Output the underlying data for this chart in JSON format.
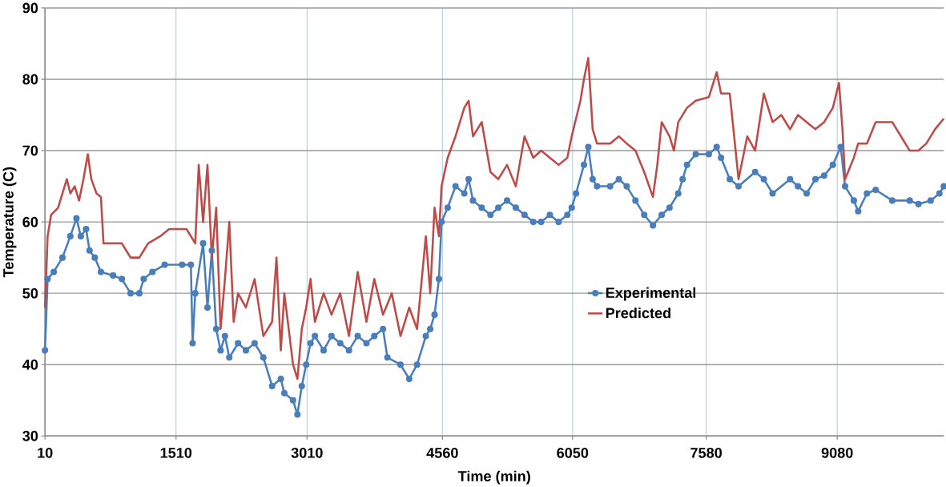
{
  "chart_data": {
    "type": "line",
    "xlabel": "Time (min)",
    "ylabel": "Temperature (C)",
    "xlim": [
      10,
      10300
    ],
    "xticks": [
      10,
      1510,
      3010,
      4560,
      6050,
      7580,
      9080
    ],
    "ylim": [
      30,
      90
    ],
    "yticks": [
      30,
      40,
      50,
      60,
      70,
      80,
      90
    ],
    "grid": true,
    "legend": "right",
    "series": [
      {
        "name": "Experimental",
        "color": "#4a7ebb",
        "marker": "circle",
        "x": [
          10,
          40,
          110,
          210,
          300,
          370,
          420,
          480,
          520,
          580,
          650,
          790,
          890,
          990,
          1090,
          1140,
          1240,
          1380,
          1580,
          1680,
          1700,
          1730,
          1820,
          1870,
          1920,
          1970,
          2020,
          2070,
          2120,
          2220,
          2310,
          2410,
          2510,
          2610,
          2710,
          2750,
          2850,
          2900,
          2950,
          3000,
          3050,
          3100,
          3200,
          3290,
          3390,
          3490,
          3590,
          3690,
          3780,
          3880,
          3930,
          4080,
          4180,
          4270,
          4370,
          4420,
          4470,
          4520,
          4550,
          4620,
          4710,
          4810,
          4860,
          4910,
          5010,
          5110,
          5200,
          5300,
          5400,
          5500,
          5600,
          5690,
          5790,
          5890,
          5990,
          6040,
          6090,
          6180,
          6230,
          6280,
          6330,
          6480,
          6580,
          6670,
          6770,
          6870,
          6970,
          7070,
          7160,
          7260,
          7310,
          7360,
          7460,
          7610,
          7700,
          7750,
          7850,
          7950,
          8140,
          8240,
          8340,
          8540,
          8630,
          8730,
          8830,
          8930,
          9030,
          9120,
          9170,
          9270,
          9320,
          9420,
          9520,
          9710,
          9910,
          10010,
          10150,
          10250,
          10300
        ],
        "values": [
          42,
          52,
          53,
          55,
          58,
          60.5,
          58,
          59,
          56,
          55,
          53,
          52.5,
          52,
          50,
          50,
          52,
          53,
          54,
          54,
          54,
          43,
          50,
          57,
          48,
          56,
          45,
          42,
          44,
          41,
          43,
          42,
          43,
          41,
          37,
          38,
          36,
          35,
          33,
          37,
          40,
          43,
          44,
          42,
          44,
          43,
          42,
          44,
          43,
          44,
          45,
          41,
          40,
          38,
          40,
          44,
          45,
          47,
          52,
          60,
          62,
          65,
          64,
          66,
          63,
          62,
          61,
          62,
          63,
          62,
          61,
          60,
          60,
          61,
          60,
          61,
          62,
          64,
          68,
          70.5,
          66,
          65,
          65,
          66,
          65,
          63,
          61,
          59.5,
          61,
          62,
          64,
          66,
          68,
          69.5,
          69.5,
          70.5,
          69,
          66,
          65,
          67,
          66,
          64,
          66,
          65,
          64,
          66,
          66.5,
          68,
          70.5,
          65,
          63,
          61.5,
          64,
          64.5,
          63,
          63,
          62.5,
          63,
          64,
          65
        ]
      },
      {
        "name": "Predicted",
        "color": "#be4b48",
        "marker": "none",
        "x": [
          10,
          40,
          80,
          160,
          210,
          260,
          300,
          350,
          400,
          450,
          500,
          540,
          600,
          650,
          680,
          790,
          890,
          940,
          990,
          1090,
          1140,
          1190,
          1330,
          1430,
          1630,
          1680,
          1730,
          1770,
          1820,
          1870,
          1920,
          1970,
          2020,
          2070,
          2120,
          2170,
          2220,
          2310,
          2410,
          2510,
          2610,
          2660,
          2710,
          2750,
          2850,
          2900,
          2950,
          3000,
          3050,
          3100,
          3200,
          3290,
          3390,
          3490,
          3590,
          3690,
          3780,
          3880,
          3980,
          4080,
          4180,
          4270,
          4370,
          4420,
          4470,
          4520,
          4550,
          4620,
          4710,
          4810,
          4860,
          4910,
          5010,
          5110,
          5200,
          5300,
          5400,
          5500,
          5600,
          5690,
          5790,
          5890,
          5990,
          6040,
          6140,
          6180,
          6230,
          6280,
          6330,
          6480,
          6580,
          6670,
          6770,
          6870,
          6970,
          7020,
          7070,
          7160,
          7210,
          7260,
          7360,
          7460,
          7610,
          7700,
          7750,
          7850,
          7950,
          8050,
          8140,
          8240,
          8340,
          8440,
          8540,
          8630,
          8730,
          8830,
          8930,
          9030,
          9100,
          9140,
          9170,
          9270,
          9320,
          9420,
          9520,
          9710,
          9810,
          9910,
          10010,
          10100,
          10200,
          10300
        ],
        "values": [
          48,
          58,
          61,
          62,
          64,
          66,
          64,
          65,
          63,
          66,
          69.5,
          66,
          64,
          63.5,
          57,
          57,
          57,
          56,
          55,
          55,
          56,
          57,
          58,
          59,
          59,
          58,
          57,
          68,
          60,
          68,
          55,
          62,
          45,
          52,
          60,
          46,
          50,
          48,
          52,
          44,
          46,
          55,
          42,
          50,
          40,
          38,
          45,
          48,
          52,
          46,
          50,
          47,
          50,
          44,
          53,
          46,
          52,
          47,
          50,
          44,
          48,
          45,
          58,
          50,
          62,
          58,
          65,
          69,
          72,
          76,
          77,
          72,
          74,
          67,
          66,
          68,
          65,
          72,
          69,
          70,
          69,
          68,
          69,
          72,
          77,
          80,
          83,
          73,
          71,
          71,
          72,
          71,
          70,
          67,
          63.5,
          68,
          74,
          72,
          70,
          74,
          76,
          77,
          77.5,
          81,
          78,
          78,
          66,
          72,
          70,
          78,
          74,
          75,
          73,
          75,
          74,
          73,
          74,
          76,
          79.5,
          73,
          66,
          69,
          71,
          71,
          74,
          74,
          72,
          70,
          70,
          71,
          73,
          74.5
        ]
      }
    ]
  }
}
